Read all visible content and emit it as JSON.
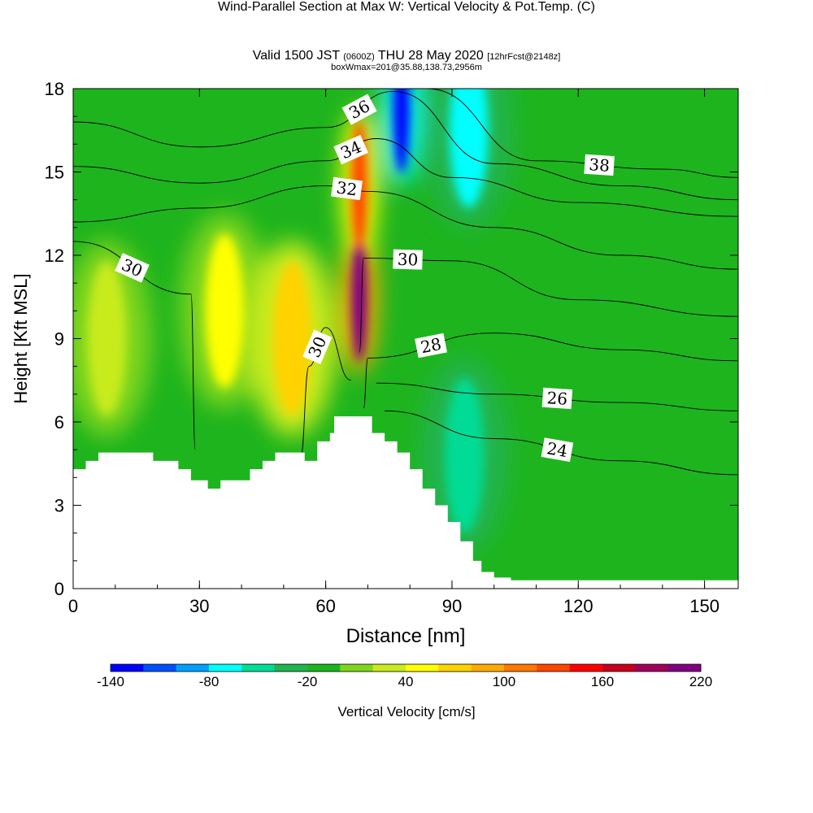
{
  "header": {
    "title": "Wind-Parallel Section at Max W: Vertical Velocity & Pot.Temp.",
    "copyright": "(C)",
    "valid_prefix": "Valid 1500 JST",
    "valid_utc": "(0600Z)",
    "valid_date": "THU 28 May 2020",
    "forecast": "[12hrFcst@2148z]",
    "location": "boxWmax=201@35.88,138.73,2956m"
  },
  "chart_data": {
    "type": "heatmap",
    "xlabel": "Distance [nm]",
    "ylabel": "Height [Kft MSL]",
    "xlim": [
      0,
      158
    ],
    "ylim": [
      0,
      18
    ],
    "xticks": [
      0,
      30,
      60,
      90,
      120,
      150
    ],
    "yticks": [
      0,
      3,
      6,
      9,
      12,
      15,
      18
    ],
    "colorbar": {
      "label": "Vertical Velocity [cm/s]",
      "ticks": [
        -140,
        -80,
        -20,
        40,
        100,
        160,
        220
      ],
      "colors": [
        "#0000ff",
        "#0050ff",
        "#00a0ff",
        "#00ffff",
        "#00dc96",
        "#22b450",
        "#1eb41e",
        "#80d61e",
        "#c8eb1e",
        "#ffff00",
        "#ffd200",
        "#ffaa00",
        "#ff7800",
        "#ff4600",
        "#ff0000",
        "#c8001e",
        "#a0005a",
        "#800080"
      ]
    },
    "terrain_profile": [
      [
        0,
        4.3
      ],
      [
        3,
        4.3
      ],
      [
        3,
        4.6
      ],
      [
        6,
        4.6
      ],
      [
        6,
        4.9
      ],
      [
        19,
        4.9
      ],
      [
        19,
        4.6
      ],
      [
        25,
        4.6
      ],
      [
        25,
        4.3
      ],
      [
        28,
        4.3
      ],
      [
        28,
        3.9
      ],
      [
        32,
        3.9
      ],
      [
        32,
        3.6
      ],
      [
        35,
        3.6
      ],
      [
        35,
        3.9
      ],
      [
        42,
        3.9
      ],
      [
        42,
        4.3
      ],
      [
        45,
        4.3
      ],
      [
        45,
        4.6
      ],
      [
        48,
        4.6
      ],
      [
        48,
        4.9
      ],
      [
        55,
        4.9
      ],
      [
        55,
        4.6
      ],
      [
        58,
        4.6
      ],
      [
        58,
        5.3
      ],
      [
        61,
        5.3
      ],
      [
        61,
        5.6
      ],
      [
        62,
        5.6
      ],
      [
        62,
        6.2
      ],
      [
        71,
        6.2
      ],
      [
        71,
        5.6
      ],
      [
        74,
        5.6
      ],
      [
        74,
        5.3
      ],
      [
        77,
        5.3
      ],
      [
        77,
        4.9
      ],
      [
        80,
        4.9
      ],
      [
        80,
        4.3
      ],
      [
        83,
        4.3
      ],
      [
        83,
        3.6
      ],
      [
        86,
        3.6
      ],
      [
        86,
        3.0
      ],
      [
        89,
        3.0
      ],
      [
        89,
        2.4
      ],
      [
        92,
        2.4
      ],
      [
        92,
        1.7
      ],
      [
        95,
        1.7
      ],
      [
        95,
        1.0
      ],
      [
        97,
        1.0
      ],
      [
        97,
        0.6
      ],
      [
        100,
        0.6
      ],
      [
        100,
        0.4
      ],
      [
        104,
        0.4
      ],
      [
        104,
        0.3
      ],
      [
        158,
        0.3
      ]
    ],
    "velocity_features": [
      {
        "x": 68,
        "y": 10.5,
        "value": 220
      },
      {
        "x": 68,
        "y": 14.5,
        "value": 130
      },
      {
        "x": 78,
        "y": 17.3,
        "value": -140
      },
      {
        "x": 94,
        "y": 16.5,
        "value": -80
      },
      {
        "x": 36,
        "y": 10,
        "value": 40
      },
      {
        "x": 52,
        "y": 9,
        "value": 70
      },
      {
        "x": 8,
        "y": 9,
        "value": 30
      },
      {
        "x": 93,
        "y": 4.8,
        "value": -60
      }
    ],
    "theta_contours": [
      {
        "label": "24",
        "points": [
          [
            74,
            6.4
          ],
          [
            100,
            5.4
          ],
          [
            130,
            4.6
          ],
          [
            158,
            4.1
          ]
        ]
      },
      {
        "label": "26",
        "points": [
          [
            72,
            7.4
          ],
          [
            100,
            7.0
          ],
          [
            130,
            6.7
          ],
          [
            158,
            6.4
          ]
        ]
      },
      {
        "label": "28",
        "points": [
          [
            69,
            6.5
          ],
          [
            70,
            8.3
          ],
          [
            100,
            9.2
          ],
          [
            130,
            8.6
          ],
          [
            158,
            8.2
          ]
        ]
      },
      {
        "label": "30",
        "points": [
          [
            0,
            12.5
          ],
          [
            28,
            10.6
          ],
          [
            29,
            5.0
          ]
        ]
      },
      {
        "label": "30",
        "points": [
          [
            68,
            8.5
          ],
          [
            69,
            11.9
          ],
          [
            90,
            11.8
          ],
          [
            120,
            10.4
          ],
          [
            158,
            9.8
          ]
        ]
      },
      {
        "label": "30",
        "points": [
          [
            54,
            4.7
          ],
          [
            56,
            8.0
          ],
          [
            60,
            9.4
          ],
          [
            66,
            7.5
          ]
        ]
      },
      {
        "label": "32",
        "points": [
          [
            0,
            13.2
          ],
          [
            30,
            13.7
          ],
          [
            60,
            14.5
          ],
          [
            70,
            14.3
          ],
          [
            100,
            13.0
          ],
          [
            130,
            12.0
          ],
          [
            158,
            11.5
          ]
        ]
      },
      {
        "label": "34",
        "points": [
          [
            0,
            15.2
          ],
          [
            30,
            14.6
          ],
          [
            60,
            15.4
          ],
          [
            72,
            16.2
          ],
          [
            90,
            14.8
          ],
          [
            120,
            13.9
          ],
          [
            158,
            13.4
          ]
        ]
      },
      {
        "label": "36",
        "points": [
          [
            0,
            16.8
          ],
          [
            30,
            15.9
          ],
          [
            60,
            16.6
          ],
          [
            76,
            17.9
          ],
          [
            100,
            15.3
          ],
          [
            130,
            14.5
          ],
          [
            158,
            14.0
          ]
        ]
      },
      {
        "label": "38",
        "points": [
          [
            84,
            18.0
          ],
          [
            110,
            15.4
          ],
          [
            140,
            15.1
          ],
          [
            158,
            14.8
          ]
        ]
      }
    ]
  }
}
